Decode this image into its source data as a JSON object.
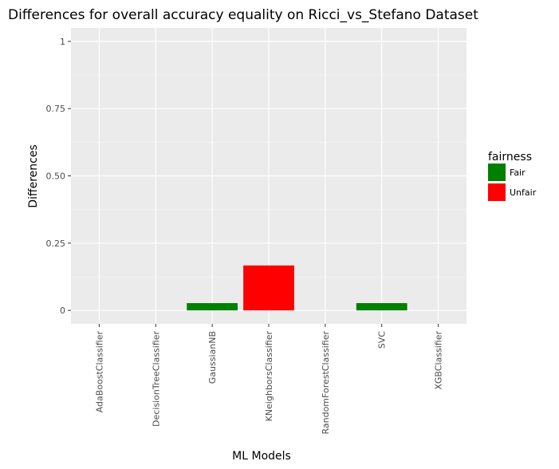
{
  "chart_data": {
    "type": "bar",
    "title": "Differences for overall accuracy equality on Ricci_vs_Stefano Dataset",
    "xlabel": "ML Models",
    "ylabel": "Differences",
    "ylim": [
      -0.05,
      1.05
    ],
    "yticks": [
      0,
      0.25,
      0.5,
      0.75,
      1
    ],
    "ytick_labels": [
      "0",
      "0.25",
      "0.50",
      "0.75",
      "1"
    ],
    "categories": [
      "AdaBoostClassifier",
      "DecisionTreeClassifier",
      "GaussianNB",
      "KNeighborsClassifier",
      "RandomForestClassifier",
      "SVC",
      "XGBClassifier"
    ],
    "values": [
      0,
      0,
      0.027,
      0.167,
      0,
      0.027,
      0
    ],
    "fairness": [
      "Fair",
      "Fair",
      "Fair",
      "Unfair",
      "Fair",
      "Fair",
      "Fair"
    ],
    "grid": true,
    "legend": {
      "title": "fairness",
      "placement": "right",
      "entries": [
        {
          "label": "Fair",
          "color": "#008000"
        },
        {
          "label": "Unfair",
          "color": "#ff0000"
        }
      ]
    },
    "colors": {
      "Fair": "#008000",
      "Unfair": "#ff0000"
    }
  }
}
